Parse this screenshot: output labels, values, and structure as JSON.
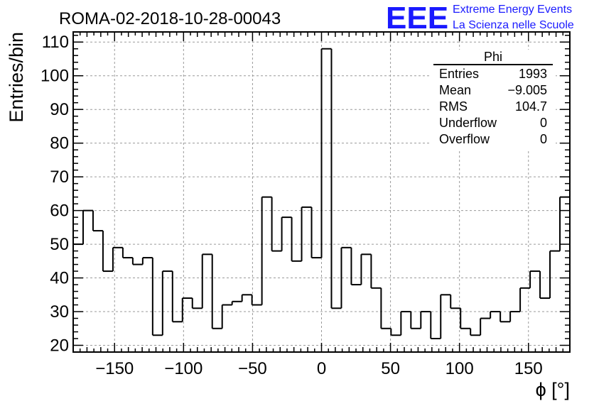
{
  "title": "ROMA-02-2018-10-28-00043",
  "logo": {
    "mark": "EEE",
    "line1": "Extreme Energy Events",
    "line2": "La Scienza nelle Scuole",
    "color": "#1a1aff"
  },
  "stats_box": {
    "title": "Phi",
    "rows": [
      {
        "label": "Entries",
        "value": "1993"
      },
      {
        "label": "Mean",
        "value": "−9.005"
      },
      {
        "label": "RMS",
        "value": "104.7"
      },
      {
        "label": "Underflow",
        "value": "0"
      },
      {
        "label": "Overflow",
        "value": "0"
      }
    ]
  },
  "chart_data": {
    "type": "histogram",
    "xlabel": "ϕ [°]",
    "ylabel": "Entries/bin",
    "xlim": [
      -180,
      180
    ],
    "ylim": [
      18,
      113
    ],
    "grid": true,
    "bin_edges_start": -180,
    "bin_width": 7.2,
    "values": [
      50,
      60,
      54,
      42,
      49,
      46,
      44,
      46,
      23,
      42,
      27,
      34,
      31,
      47,
      25,
      32,
      33,
      35,
      32,
      64,
      48,
      58,
      45,
      61,
      46,
      108,
      31,
      49,
      38,
      47,
      37,
      25,
      23,
      30,
      25,
      30,
      22,
      35,
      31,
      25,
      23,
      28,
      30,
      27,
      30,
      37,
      42,
      34,
      48,
      64
    ],
    "x_ticks": [
      -150,
      -100,
      -50,
      0,
      50,
      100,
      150
    ],
    "x_tick_labels": [
      "−150",
      "−100",
      "−50",
      "0",
      "50",
      "100",
      "150"
    ],
    "y_ticks": [
      20,
      30,
      40,
      50,
      60,
      70,
      80,
      90,
      100,
      110
    ],
    "y_tick_labels": [
      "20",
      "30",
      "40",
      "50",
      "60",
      "70",
      "80",
      "90",
      "100",
      "110"
    ]
  }
}
